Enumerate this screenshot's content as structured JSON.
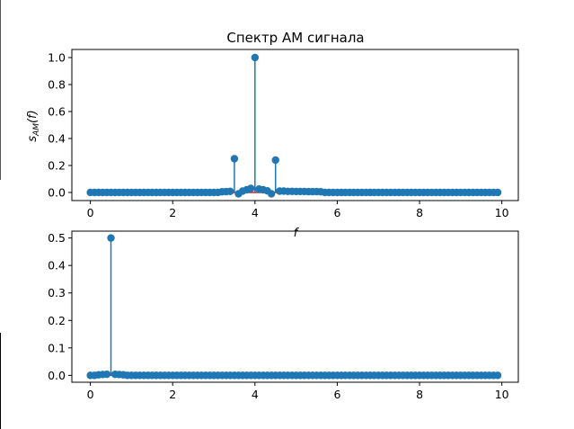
{
  "colors": {
    "stem": "#1f77b4",
    "baseline": "#d62728",
    "axes": "#000000",
    "background": "#ffffff"
  },
  "chart_data": [
    {
      "type": "stem",
      "title": "Спектр АМ сигнала",
      "ylabel_main": "s",
      "ylabel_sub": "AM",
      "ylabel_tail": "(f)",
      "xlabel": "f",
      "xlim": [
        -0.45,
        10.4
      ],
      "ylim": [
        -0.06,
        1.06
      ],
      "xticks": [
        0,
        2,
        4,
        6,
        8,
        10
      ],
      "yticks": [
        0.0,
        0.2,
        0.4,
        0.6,
        0.8,
        1.0
      ],
      "xtick_labels": [
        "0",
        "2",
        "4",
        "6",
        "8",
        "10"
      ],
      "ytick_labels": [
        "0.0",
        "0.2",
        "0.4",
        "0.6",
        "0.8",
        "1.0"
      ],
      "x_start": 0,
      "x_step": 0.1,
      "n_points": 100,
      "peaks": [
        {
          "x": 3.5,
          "y": 0.25
        },
        {
          "x": 4.0,
          "y": 1.0
        },
        {
          "x": 4.5,
          "y": 0.24
        }
      ],
      "small": [
        {
          "x": 3.2,
          "y": 0.005
        },
        {
          "x": 3.3,
          "y": 0.006
        },
        {
          "x": 3.4,
          "y": 0.008
        },
        {
          "x": 3.6,
          "y": 0.008
        },
        {
          "x": 3.7,
          "y": 0.01
        },
        {
          "x": 3.8,
          "y": 0.02
        },
        {
          "x": 3.9,
          "y": 0.03
        },
        {
          "x": 4.1,
          "y": 0.025
        },
        {
          "x": 4.2,
          "y": 0.02
        },
        {
          "x": 4.3,
          "y": 0.012
        },
        {
          "x": 4.4,
          "y": 0.006
        },
        {
          "x": 4.6,
          "y": 0.01
        },
        {
          "x": 4.7,
          "y": 0.01
        },
        {
          "x": 4.8,
          "y": 0.008
        },
        {
          "x": 4.9,
          "y": 0.008
        },
        {
          "x": 5.0,
          "y": 0.007
        },
        {
          "x": 5.1,
          "y": 0.007
        },
        {
          "x": 5.2,
          "y": 0.007
        },
        {
          "x": 5.3,
          "y": 0.006
        },
        {
          "x": 5.4,
          "y": 0.006
        },
        {
          "x": 5.5,
          "y": 0.006
        },
        {
          "x": 5.6,
          "y": 0.005
        }
      ],
      "dips": [
        {
          "x": 3.6,
          "y": -0.01
        },
        {
          "x": 4.4,
          "y": -0.01
        }
      ]
    },
    {
      "type": "stem",
      "title": "",
      "xlim": [
        -0.45,
        10.4
      ],
      "ylim": [
        -0.025,
        0.525
      ],
      "xticks": [
        0,
        2,
        4,
        6,
        8,
        10
      ],
      "yticks": [
        0.0,
        0.1,
        0.2,
        0.3,
        0.4,
        0.5
      ],
      "xtick_labels": [
        "0",
        "2",
        "4",
        "6",
        "8",
        "10"
      ],
      "ytick_labels": [
        "0.0",
        "0.1",
        "0.2",
        "0.3",
        "0.4",
        "0.5"
      ],
      "x_start": 0,
      "x_step": 0.1,
      "n_points": 100,
      "peaks": [
        {
          "x": 0.5,
          "y": 0.5
        }
      ],
      "small": [
        {
          "x": 0.2,
          "y": 0.002
        },
        {
          "x": 0.3,
          "y": 0.003
        },
        {
          "x": 0.4,
          "y": 0.004
        },
        {
          "x": 0.6,
          "y": 0.004
        },
        {
          "x": 0.7,
          "y": 0.003
        },
        {
          "x": 0.8,
          "y": 0.002
        }
      ],
      "dips": []
    }
  ]
}
